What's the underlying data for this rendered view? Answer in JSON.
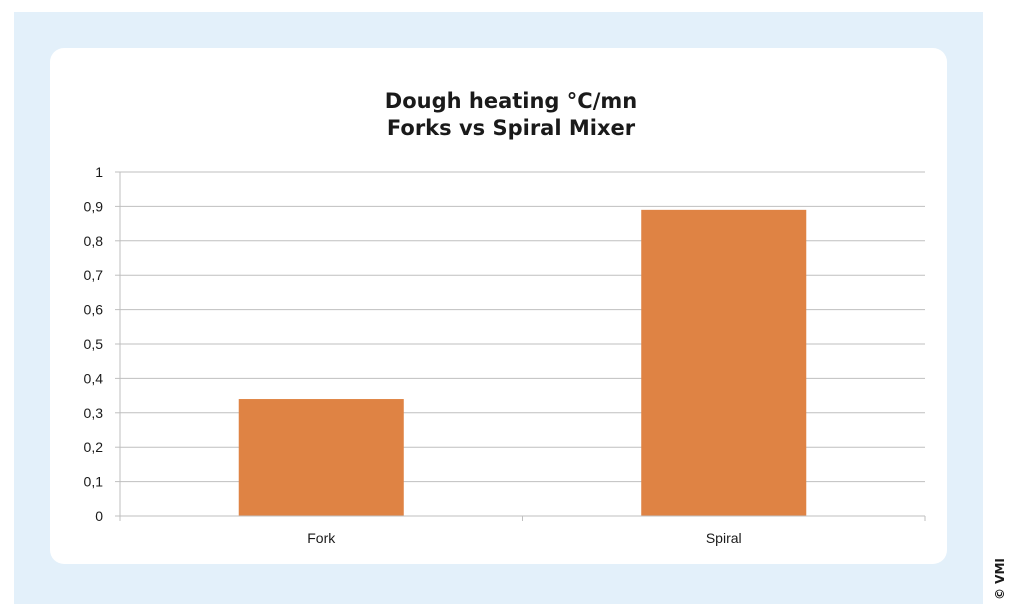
{
  "copyright": "© VMI",
  "colors": {
    "bar": "#df8344",
    "gridline": "#bfbfbf",
    "frame": "#e3f0fa"
  },
  "chart_data": {
    "type": "bar",
    "title": [
      "Dough heating °C/mn",
      "Forks vs Spiral Mixer"
    ],
    "categories": [
      "Fork",
      "Spiral"
    ],
    "values": [
      0.34,
      0.89
    ],
    "ylim": [
      0,
      1
    ],
    "yticks": [
      0,
      0.1,
      0.2,
      0.3,
      0.4,
      0.5,
      0.6,
      0.7,
      0.8,
      0.9,
      1
    ],
    "ytick_labels": [
      "0",
      "0,1",
      "0,2",
      "0,3",
      "0,4",
      "0,5",
      "0,6",
      "0,7",
      "0,8",
      "0,9",
      "1"
    ],
    "grid": true,
    "legend": "none"
  }
}
